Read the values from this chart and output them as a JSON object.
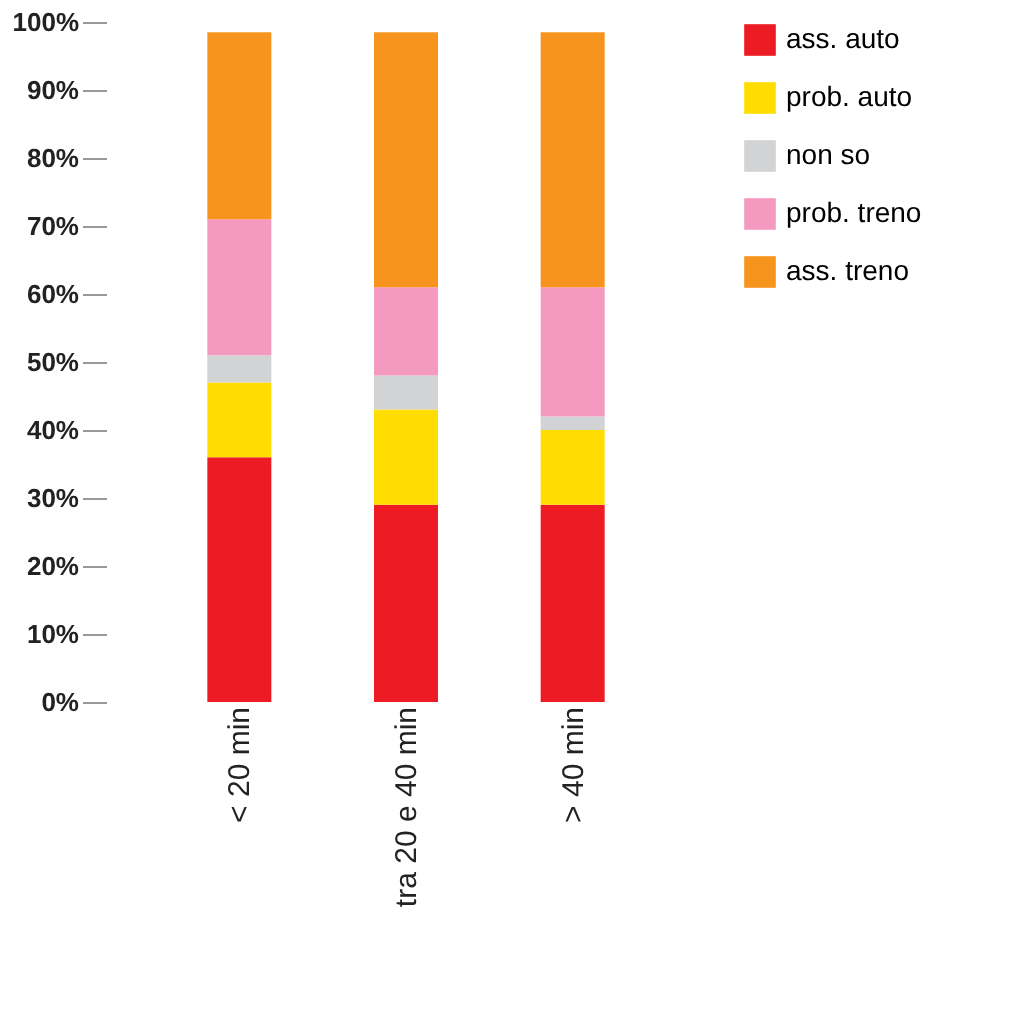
{
  "chart_data": {
    "type": "bar",
    "stacked": true,
    "categories": [
      "< 20 min",
      "tra 20 e 40 min",
      "> 40 min"
    ],
    "series": [
      {
        "name": "ass. auto",
        "color": "#ed1c24",
        "values": [
          36,
          29,
          29
        ]
      },
      {
        "name": "prob. auto",
        "color": "#ffdd00",
        "values": [
          11,
          14,
          11
        ]
      },
      {
        "name": "non so",
        "color": "#d1d3d4",
        "values": [
          4,
          5,
          2
        ]
      },
      {
        "name": "prob. treno",
        "color": "#f49ac1",
        "values": [
          20,
          13,
          19
        ]
      },
      {
        "name": "ass. treno",
        "color": "#f7941d",
        "values": [
          27.5,
          37.5,
          37.5
        ]
      }
    ],
    "ylim": [
      0,
      100
    ],
    "yticks": [
      {
        "value": 0,
        "label": "0%"
      },
      {
        "value": 10,
        "label": "10%"
      },
      {
        "value": 20,
        "label": "20%"
      },
      {
        "value": 30,
        "label": "30%"
      },
      {
        "value": 40,
        "label": "40%"
      },
      {
        "value": 50,
        "label": "50%"
      },
      {
        "value": 60,
        "label": "60%"
      },
      {
        "value": 70,
        "label": "70%"
      },
      {
        "value": 80,
        "label": "80%"
      },
      {
        "value": 90,
        "label": "90%"
      },
      {
        "value": 100,
        "label": "100%"
      }
    ],
    "grid": false,
    "legend": "right"
  }
}
